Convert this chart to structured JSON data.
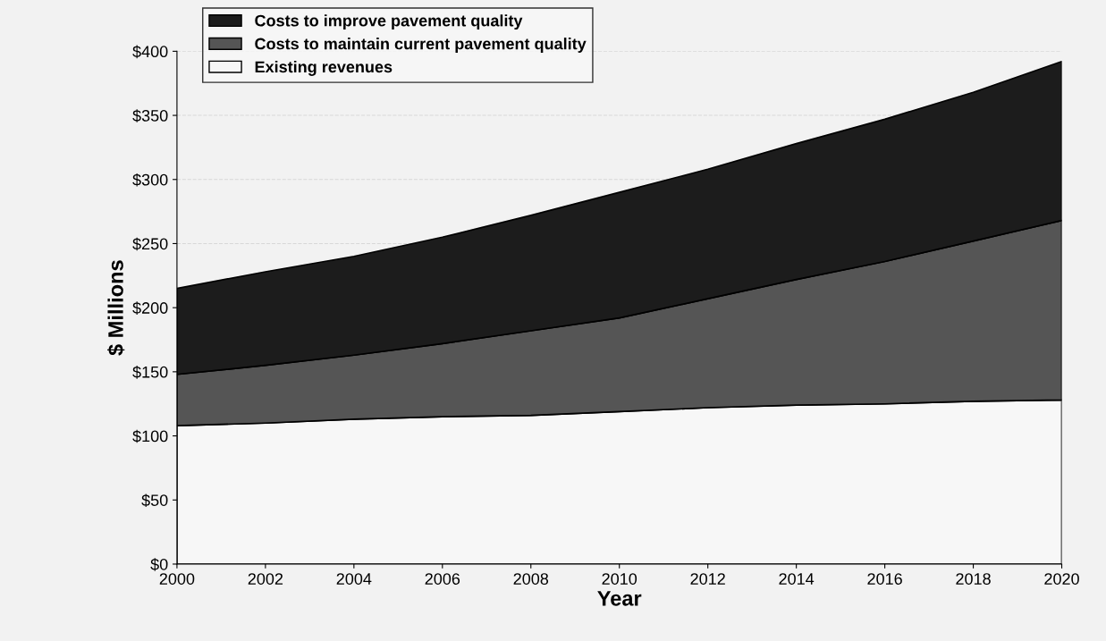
{
  "chart_data": {
    "type": "area",
    "stacked": true,
    "xlabel": "Year",
    "ylabel": "$ Millions",
    "x": [
      2000,
      2002,
      2004,
      2006,
      2008,
      2010,
      2012,
      2014,
      2016,
      2018,
      2020
    ],
    "series": [
      {
        "name": "Existing revenues",
        "color": "#f7f7f7",
        "values": [
          108,
          110,
          113,
          115,
          116,
          119,
          122,
          124,
          125,
          127,
          128
        ]
      },
      {
        "name": "Costs to maintain current pavement quality",
        "color": "#555555",
        "values": [
          40,
          45,
          50,
          57,
          66,
          73,
          85,
          98,
          111,
          125,
          140
        ]
      },
      {
        "name": "Costs to improve pavement quality",
        "color": "#1c1c1c",
        "values": [
          67,
          73,
          77,
          83,
          90,
          98,
          101,
          106,
          111,
          116,
          124
        ]
      }
    ],
    "xlim": [
      2000,
      2020
    ],
    "xticks": [
      2000,
      2002,
      2004,
      2006,
      2008,
      2010,
      2012,
      2014,
      2016,
      2018,
      2020
    ],
    "ylim": [
      0,
      400
    ],
    "yticks": [
      {
        "value": 0,
        "label": "$0"
      },
      {
        "value": 50,
        "label": "$50"
      },
      {
        "value": 100,
        "label": "$100"
      },
      {
        "value": 150,
        "label": "$150"
      },
      {
        "value": 200,
        "label": "$200"
      },
      {
        "value": 250,
        "label": "$250"
      },
      {
        "value": 300,
        "label": "$300"
      },
      {
        "value": 350,
        "label": "$350"
      },
      {
        "value": 400,
        "label": "$400"
      }
    ],
    "grid": "y",
    "legend": "top left"
  }
}
